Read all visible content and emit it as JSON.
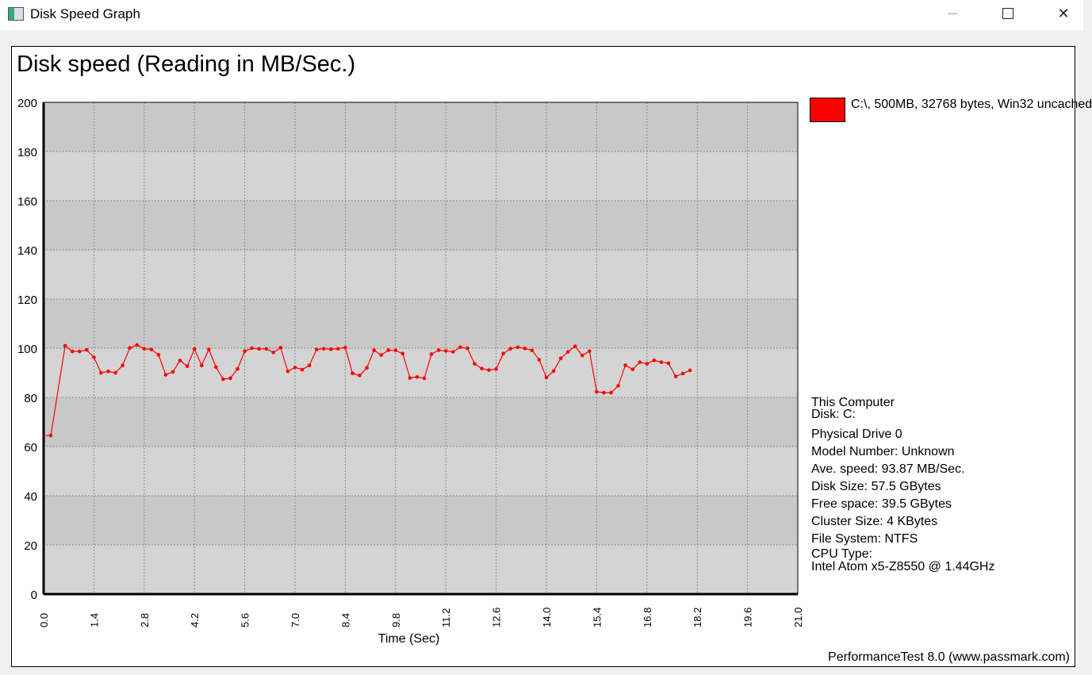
{
  "window": {
    "title": "Disk Speed Graph",
    "controls": [
      "minimize",
      "maximize",
      "close"
    ]
  },
  "chart_data": {
    "type": "line",
    "title": "Disk speed (Reading in MB/Sec.)",
    "xlabel": "Time (Sec)",
    "ylabel": "",
    "xlim": [
      0,
      21
    ],
    "ylim": [
      0,
      200
    ],
    "x_ticks": [
      "0.0",
      "1.4",
      "2.8",
      "4.2",
      "5.6",
      "7.0",
      "8.4",
      "9.8",
      "11.2",
      "12.6",
      "14.0",
      "15.4",
      "16.8",
      "18.2",
      "19.6",
      "21.0"
    ],
    "y_ticks": [
      "0",
      "20",
      "40",
      "60",
      "80",
      "100",
      "120",
      "140",
      "160",
      "180",
      "200"
    ],
    "grid": true,
    "legend_position": "right",
    "series": [
      {
        "name": "C:\\, 500MB, 32768 bytes, Win32 uncached",
        "color": "#ff0000",
        "x": [
          0.0,
          0.2,
          0.6,
          0.8,
          1.0,
          1.2,
          1.4,
          1.6,
          1.8,
          2.0,
          2.2,
          2.4,
          2.6,
          2.8,
          3.0,
          3.2,
          3.4,
          3.6,
          3.8,
          4.0,
          4.2,
          4.4,
          4.6,
          4.8,
          5.0,
          5.2,
          5.4,
          5.6,
          5.8,
          6.0,
          6.2,
          6.4,
          6.6,
          6.8,
          7.0,
          7.2,
          7.4,
          7.6,
          7.8,
          8.0,
          8.2,
          8.4,
          8.6,
          8.8,
          9.0,
          9.2,
          9.4,
          9.6,
          9.8,
          10.0,
          10.2,
          10.4,
          10.6,
          10.8,
          11.0,
          11.2,
          11.4,
          11.6,
          11.8,
          12.0,
          12.2,
          12.4,
          12.6,
          12.8,
          13.0,
          13.2,
          13.4,
          13.6,
          13.8,
          14.0,
          14.2,
          14.4,
          14.6,
          14.8,
          15.0,
          15.2,
          15.4,
          15.6,
          15.8,
          16.0,
          16.2,
          16.4,
          16.6,
          16.8,
          17.0,
          17.2,
          17.4,
          17.6,
          17.8,
          18.0
        ],
        "values": [
          64.5,
          64.5,
          101,
          98.7,
          98.7,
          99.3,
          96.3,
          90,
          90.6,
          90,
          93,
          100.1,
          101.3,
          99.8,
          99.5,
          97.3,
          89.2,
          90.4,
          95,
          92.7,
          99.7,
          93,
          99.5,
          92.3,
          87.4,
          87.8,
          91.6,
          98.8,
          100,
          99.7,
          99.7,
          98.3,
          100.2,
          90.6,
          92.2,
          91.3,
          93,
          99.5,
          99.8,
          99.6,
          99.8,
          100.3,
          89.8,
          88.9,
          92,
          99.2,
          97.2,
          99.2,
          99.1,
          97.8,
          87.9,
          88.3,
          87.8,
          97.6,
          99.2,
          98.9,
          98.5,
          100.4,
          100,
          93.7,
          91.7,
          91.1,
          91.5,
          97.8,
          99.8,
          100.4,
          99.9,
          99.1,
          95.3,
          88.1,
          90.7,
          95.9,
          98.5,
          100.8,
          97,
          98.8,
          82.3,
          81.9,
          81.9,
          84.7,
          93.1,
          91.4,
          94.3,
          93.7,
          95.1,
          94.3,
          93.9,
          88.5,
          89.7,
          91
        ]
      }
    ]
  },
  "info": {
    "lines": [
      "This Computer",
      "Disk: C:",
      "Physical Drive 0",
      "Model Number: Unknown",
      "Ave. speed: 93.87 MB/Sec.",
      "Disk Size: 57.5 GBytes",
      "Free space: 39.5 GBytes",
      "Cluster Size: 4 KBytes",
      "File System: NTFS",
      "CPU Type:",
      "Intel Atom x5-Z8550 @ 1.44GHz"
    ]
  },
  "footer": "PerformanceTest 8.0 (www.passmark.com)"
}
